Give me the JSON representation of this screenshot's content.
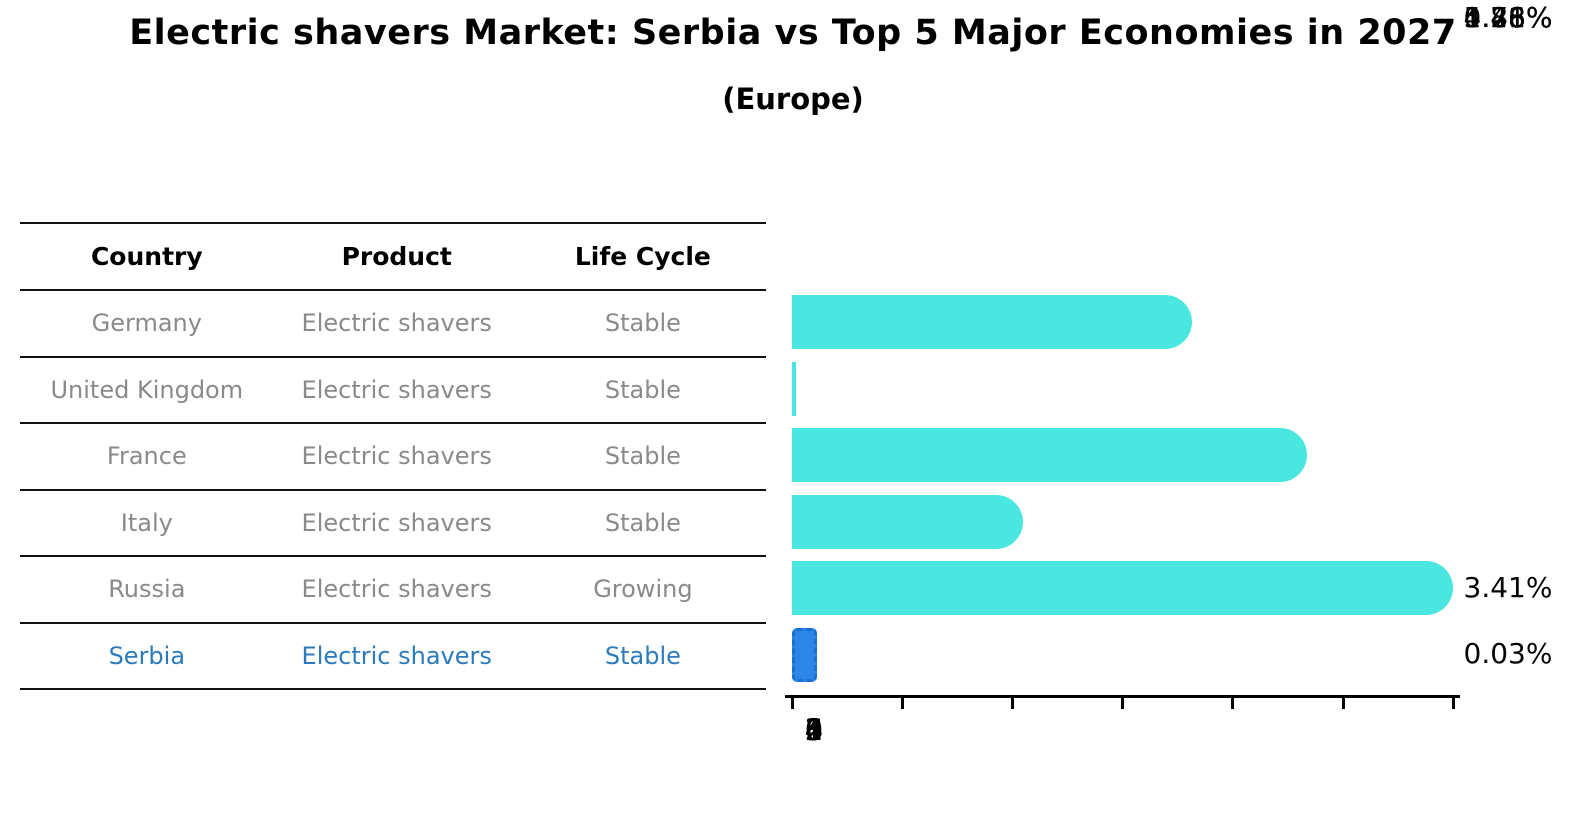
{
  "title": "Electric shavers Market: Serbia vs Top 5 Major Economies in 2027",
  "subtitle": "(Europe)",
  "table": {
    "headers": [
      "Country",
      "Product",
      "Life Cycle"
    ],
    "rows": [
      {
        "country": "Germany",
        "product": "Electric shavers",
        "life_cycle": "Stable",
        "share": "3.41%",
        "highlighted": false
      },
      {
        "country": "United Kingdom",
        "product": "Electric shavers",
        "life_cycle": "Stable",
        "share": "0.03%",
        "highlighted": false
      },
      {
        "country": "France",
        "product": "Electric shavers",
        "life_cycle": "Stable",
        "share": "4.46%",
        "highlighted": false
      },
      {
        "country": "Italy",
        "product": "Electric shavers",
        "life_cycle": "Stable",
        "share": "1.88%",
        "highlighted": false
      },
      {
        "country": "Russia",
        "product": "Electric shavers",
        "life_cycle": "Growing",
        "share": "5.78%",
        "highlighted": false
      },
      {
        "country": "Serbia",
        "product": "Electric shavers",
        "life_cycle": "Stable",
        "share": "0.21%",
        "highlighted": true
      }
    ]
  },
  "chart_data": {
    "type": "bar",
    "orientation": "horizontal",
    "title": "Electric shavers Market: Serbia vs Top 5 Major Economies in 2027 (Europe)",
    "categories": [
      "Germany",
      "United Kingdom",
      "France",
      "Italy",
      "Russia",
      "Serbia"
    ],
    "values": [
      3.41,
      0.03,
      4.46,
      1.88,
      5.78,
      0.21
    ],
    "value_labels": [
      "3.41%",
      "0.03%",
      "4.46%",
      "1.88%",
      "5.78%",
      "0.21%"
    ],
    "unit": "%",
    "xlim": [
      0,
      6
    ],
    "x_ticks": [
      "0",
      "1",
      "2",
      "3",
      "4",
      "5",
      "6"
    ],
    "grid": false,
    "legend": false,
    "highlight_category": "Serbia",
    "bar_color": "#4ae6e0",
    "highlight_fill_color": "#2b86e6",
    "highlight_border_color": "#1a6fd2",
    "highlight_text_color": "#2b7bbd"
  }
}
